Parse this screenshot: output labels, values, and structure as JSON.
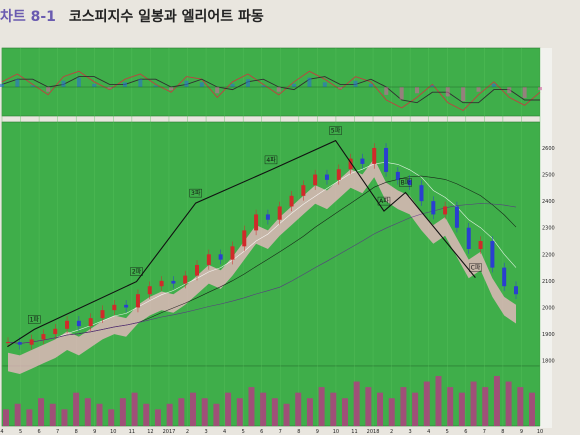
{
  "title": {
    "number": "차트 8-1",
    "text": "코스피지수 일봉과 엘리어트 파동"
  },
  "colors": {
    "panel_bg": "#3fae4a",
    "panel_bg_light": "#56c05c",
    "up_candle": "#d02a2a",
    "down_candle": "#2a3fd0",
    "cloud_pos": "#f4b8c8",
    "cloud_neg": "#a8c8f0",
    "wave_line": "#111111",
    "macd_line": "#c04040",
    "signal_line": "#303030",
    "volume": "#b04080"
  },
  "chart_data": [
    {
      "type": "line",
      "name": "oscillator-panel",
      "series": [
        {
          "values": [
            0.2,
            0.5,
            0.1,
            -0.3,
            0.4,
            0.6,
            0.2,
            -0.1,
            0.3,
            0.5,
            0.1,
            -0.2,
            0.4,
            0.3,
            -0.4,
            0.2,
            0.5,
            0.1,
            -0.3,
            0.2,
            0.6,
            0.3,
            -0.1,
            0.4,
            0.2,
            -0.5,
            -0.8,
            -0.4,
            0.1,
            -0.6,
            -0.9,
            -0.3,
            0.2,
            -0.4,
            -0.7,
            -0.2
          ]
        },
        {
          "values": [
            0.1,
            0.3,
            0.3,
            0.0,
            0.1,
            0.4,
            0.4,
            0.1,
            0.1,
            0.3,
            0.3,
            0.0,
            0.1,
            0.3,
            0.0,
            -0.1,
            0.2,
            0.3,
            0.0,
            -0.1,
            0.3,
            0.4,
            0.1,
            0.1,
            0.3,
            0.0,
            -0.5,
            -0.6,
            -0.2,
            -0.2,
            -0.6,
            -0.6,
            -0.1,
            -0.1,
            -0.5,
            -0.5
          ]
        }
      ]
    },
    {
      "type": "line",
      "name": "price-panel",
      "price": [
        1870,
        1860,
        1880,
        1900,
        1920,
        1950,
        1930,
        1960,
        1990,
        2010,
        2000,
        2050,
        2080,
        2100,
        2090,
        2120,
        2160,
        2200,
        2180,
        2230,
        2290,
        2350,
        2330,
        2380,
        2420,
        2460,
        2500,
        2480,
        2520,
        2560,
        2540,
        2600,
        2510,
        2480,
        2460,
        2400,
        2350,
        2380,
        2300,
        2220,
        2250,
        2150,
        2080,
        2050
      ],
      "waves": [
        {
          "label": "1파",
          "x": 0.06,
          "y": 1895
        },
        {
          "label": "2파",
          "x": 0.25,
          "y": 2075
        },
        {
          "label": "3파",
          "x": 0.36,
          "y": 2370
        },
        {
          "label": "4파",
          "x": 0.5,
          "y": 2495
        },
        {
          "label": "5파",
          "x": 0.62,
          "y": 2605
        },
        {
          "label": "A파",
          "x": 0.71,
          "y": 2340
        },
        {
          "label": "B파",
          "x": 0.75,
          "y": 2410
        },
        {
          "label": "C파",
          "x": 0.88,
          "y": 2090
        }
      ],
      "y_ticks": [
        "2600",
        "2500",
        "2400",
        "2300",
        "2200",
        "2100",
        "2000",
        "1900",
        "1800"
      ],
      "annotations": []
    },
    {
      "type": "bar",
      "name": "volume-panel",
      "values": [
        3,
        4,
        3,
        5,
        4,
        3,
        6,
        5,
        4,
        3,
        5,
        6,
        4,
        3,
        4,
        5,
        6,
        5,
        4,
        6,
        5,
        7,
        6,
        5,
        4,
        6,
        5,
        7,
        6,
        5,
        8,
        7,
        6,
        5,
        7,
        6,
        8,
        9,
        7,
        6,
        8,
        7,
        9,
        8,
        7,
        6
      ]
    }
  ],
  "x_ticks": [
    "4",
    "5",
    "6",
    "7",
    "8",
    "9",
    "10",
    "11",
    "12",
    "2017",
    "2",
    "3",
    "4",
    "5",
    "6",
    "7",
    "8",
    "9",
    "10",
    "11",
    "2018",
    "2",
    "3",
    "4",
    "5",
    "6",
    "7",
    "8",
    "9",
    "10"
  ]
}
